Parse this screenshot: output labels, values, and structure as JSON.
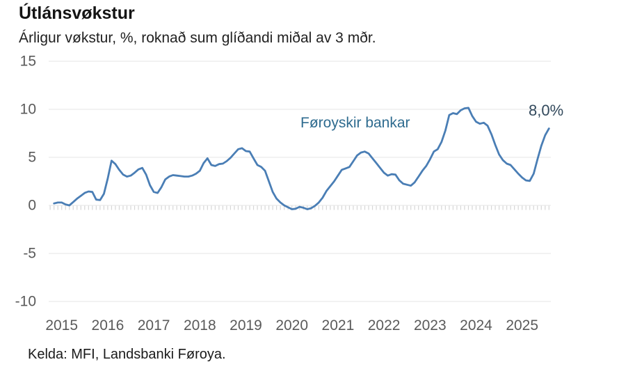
{
  "header": {
    "title": "Útlánsvøkstur",
    "subtitle": "Árligur vøkstur, %, roknað sum glíðandi miðal av 3 mðr."
  },
  "annotations": {
    "series_label": "Føroyskir bankar",
    "end_label": "8,0%"
  },
  "footer": {
    "source": "Kelda: MFI, Landsbanki Føroya."
  },
  "colors": {
    "line": "#4a7eb5",
    "series_label_text": "#2e6b8f",
    "end_label_text": "#32495c",
    "axis_text": "#5a5a5a",
    "gridline": "#e9e9e9",
    "tick": "#d6d6d6"
  },
  "chart_data": {
    "type": "line",
    "title": "Útlánsvøkstur",
    "subtitle": "Árligur vøkstur, %, roknað sum glíðandi miðal av 3 mðr.",
    "xlabel": "",
    "ylabel": "Árligur vøkstur, %",
    "ylim": [
      -10,
      15
    ],
    "yticks": [
      15,
      10,
      5,
      0,
      -5,
      -10
    ],
    "xticks": [
      "2015",
      "2016",
      "2017",
      "2018",
      "2019",
      "2020",
      "2021",
      "2022",
      "2023",
      "2024",
      "2025"
    ],
    "grid": true,
    "legend_position": "inline-annotation",
    "end_value_label": "8,0%",
    "last_value": 8.0,
    "series": [
      {
        "name": "Føroyskir bankar",
        "start_month": "2014-11",
        "frequency": "monthly",
        "values": [
          0.2,
          0.3,
          0.3,
          0.1,
          0.0,
          0.35,
          0.7,
          1.0,
          1.3,
          1.45,
          1.4,
          0.6,
          0.55,
          1.2,
          2.8,
          4.65,
          4.3,
          3.7,
          3.2,
          3.0,
          3.1,
          3.4,
          3.75,
          3.9,
          3.2,
          2.1,
          1.4,
          1.3,
          1.9,
          2.7,
          3.0,
          3.15,
          3.1,
          3.05,
          3.0,
          3.0,
          3.1,
          3.3,
          3.6,
          4.4,
          4.9,
          4.2,
          4.1,
          4.3,
          4.35,
          4.6,
          4.95,
          5.4,
          5.85,
          5.95,
          5.65,
          5.6,
          4.9,
          4.2,
          4.0,
          3.6,
          2.5,
          1.4,
          0.7,
          0.3,
          0.0,
          -0.2,
          -0.4,
          -0.35,
          -0.15,
          -0.25,
          -0.4,
          -0.3,
          -0.05,
          0.3,
          0.8,
          1.5,
          2.0,
          2.5,
          3.1,
          3.7,
          3.85,
          4.0,
          4.6,
          5.2,
          5.5,
          5.6,
          5.4,
          4.9,
          4.4,
          3.9,
          3.4,
          3.1,
          3.25,
          3.2,
          2.6,
          2.25,
          2.15,
          2.05,
          2.4,
          3.0,
          3.6,
          4.1,
          4.8,
          5.6,
          5.85,
          6.6,
          7.8,
          9.4,
          9.6,
          9.5,
          9.9,
          10.1,
          10.15,
          9.3,
          8.7,
          8.5,
          8.6,
          8.3,
          7.4,
          6.3,
          5.3,
          4.7,
          4.35,
          4.2,
          3.75,
          3.3,
          2.9,
          2.6,
          2.55,
          3.3,
          4.8,
          6.2,
          7.3,
          8.0
        ]
      }
    ]
  }
}
